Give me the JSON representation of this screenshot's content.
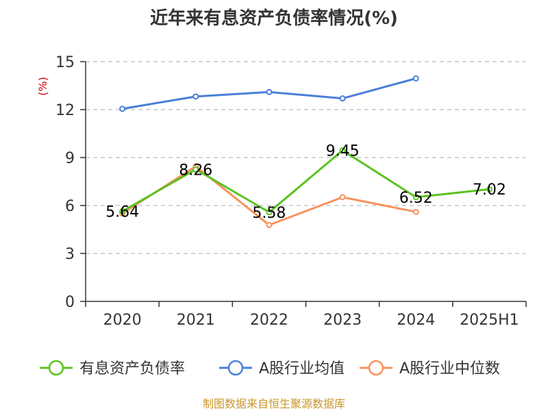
{
  "chart_data": {
    "type": "line",
    "title": "近年来有息资产负债率情况(%)",
    "ylabel": "(%)",
    "categories": [
      "2020",
      "2021",
      "2022",
      "2023",
      "2024",
      "2025H1"
    ],
    "ylim": [
      0,
      15
    ],
    "yticks": [
      "0",
      "3",
      "6",
      "9",
      "12",
      "15"
    ],
    "grid": true,
    "legend_position": "bottom",
    "series": [
      {
        "name": "有息资产负债率",
        "color": "#5ac21f",
        "values": [
          5.64,
          8.26,
          5.58,
          9.45,
          6.52,
          7.02
        ],
        "labels": [
          "5.64",
          "8.26",
          "5.58",
          "9.45",
          "6.52",
          "7.02"
        ]
      },
      {
        "name": "A股行业均值",
        "color": "#4a7fd9",
        "values": [
          12.05,
          12.82,
          13.1,
          12.7,
          13.95,
          null
        ]
      },
      {
        "name": "A股行业中位数",
        "color": "#f7915b",
        "values": [
          5.5,
          8.45,
          4.78,
          6.52,
          5.6,
          null
        ]
      }
    ]
  },
  "footer": {
    "source": "制图数据来自恒生聚源数据库",
    "color": "#c8962a"
  },
  "unit_color": "#cc0000"
}
